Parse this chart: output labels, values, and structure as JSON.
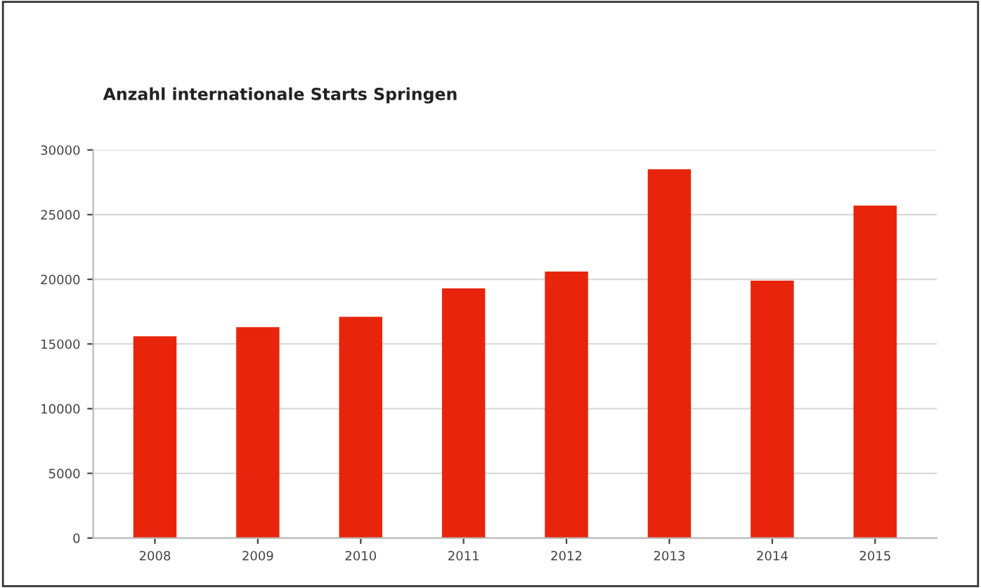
{
  "chart_data": {
    "type": "bar",
    "title": "Anzahl internationale Starts Springen",
    "categories": [
      "2008",
      "2009",
      "2010",
      "2011",
      "2012",
      "2013",
      "2014",
      "2015"
    ],
    "values": [
      15600,
      16300,
      17100,
      19300,
      20600,
      28500,
      19900,
      25700
    ],
    "color": "#e8250c",
    "ylim": [
      0,
      30000
    ],
    "yticks": [
      0,
      5000,
      10000,
      15000,
      20000,
      25000,
      30000
    ],
    "grid": "y"
  }
}
